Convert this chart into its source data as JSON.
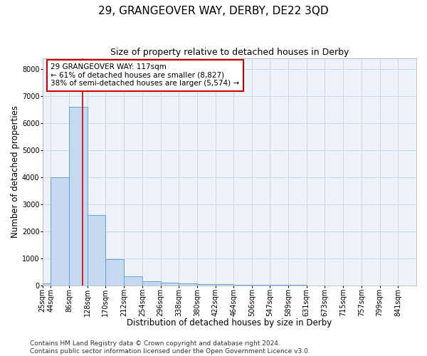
{
  "title": "29, GRANGEOVER WAY, DERBY, DE22 3QD",
  "subtitle": "Size of property relative to detached houses in Derby",
  "xlabel": "Distribution of detached houses by size in Derby",
  "ylabel": "Number of detached properties",
  "bin_labels": [
    "25sqm",
    "44sqm",
    "86sqm",
    "128sqm",
    "170sqm",
    "212sqm",
    "254sqm",
    "296sqm",
    "338sqm",
    "380sqm",
    "422sqm",
    "464sqm",
    "506sqm",
    "547sqm",
    "589sqm",
    "631sqm",
    "673sqm",
    "715sqm",
    "757sqm",
    "799sqm",
    "841sqm"
  ],
  "bin_edges": [
    25,
    44,
    86,
    128,
    170,
    212,
    254,
    296,
    338,
    380,
    422,
    464,
    506,
    547,
    589,
    631,
    673,
    715,
    757,
    799,
    841
  ],
  "bar_heights": [
    80,
    4000,
    6600,
    2600,
    950,
    330,
    140,
    90,
    60,
    50,
    30,
    10,
    5,
    3,
    2,
    1,
    1,
    0,
    0,
    0
  ],
  "bar_color": "#c5d8f0",
  "bar_edgecolor": "#5b9bd5",
  "bar_linewidth": 0.6,
  "vline_x": 117,
  "vline_color": "#cc0000",
  "ylim": [
    0,
    8400
  ],
  "yticks": [
    0,
    1000,
    2000,
    3000,
    4000,
    5000,
    6000,
    7000,
    8000
  ],
  "grid_color": "#d0d8e8",
  "bg_color": "#eef2fa",
  "annotation_text": "29 GRANGEOVER WAY: 117sqm\n← 61% of detached houses are smaller (8,827)\n38% of semi-detached houses are larger (5,574) →",
  "annotation_box_color": "#ffffff",
  "annotation_box_edgecolor": "#cc0000",
  "footer_line1": "Contains HM Land Registry data © Crown copyright and database right 2024.",
  "footer_line2": "Contains public sector information licensed under the Open Government Licence v3.0.",
  "title_fontsize": 11,
  "subtitle_fontsize": 9,
  "axis_label_fontsize": 8.5,
  "tick_fontsize": 7,
  "annotation_fontsize": 7.5,
  "footer_fontsize": 6.5
}
